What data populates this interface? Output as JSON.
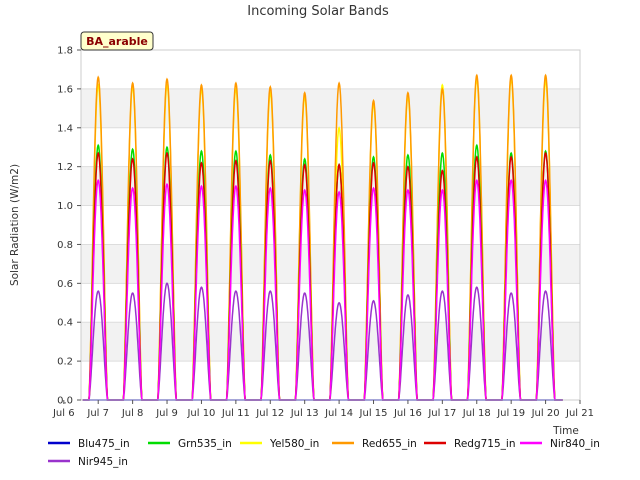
{
  "chart_data": {
    "type": "line",
    "title": "Incoming Solar Bands",
    "ylabel": "Solar Radiation (W/m2)",
    "xlabel": "Time",
    "tag": "BA_arable",
    "ylim": [
      0,
      1.8
    ],
    "xlim": [
      6.5,
      21.0
    ],
    "yticks": [
      0.0,
      0.2,
      0.4,
      0.6,
      0.8,
      1.0,
      1.2,
      1.4,
      1.6,
      1.8
    ],
    "ytick_labels": [
      "0.0",
      "0.2",
      "0.4",
      "0.6",
      "0.8",
      "1.0",
      "1.2",
      "1.4",
      "1.6",
      "1.8"
    ],
    "xticks": [
      6,
      7,
      8,
      9,
      10,
      11,
      12,
      13,
      14,
      15,
      16,
      17,
      18,
      19,
      20,
      21
    ],
    "xtick_labels": [
      "Jul 6",
      "Jul 7",
      "Jul 8",
      "Jul 9",
      "Jul 10",
      "Jul 11",
      "Jul 12",
      "Jul 13",
      "Jul 14",
      "Jul 15",
      "Jul 16",
      "Jul 17",
      "Jul 18",
      "Jul 19",
      "Jul 20",
      "Jul 21"
    ],
    "grid": true,
    "legend_position": "bottom",
    "days": [
      7,
      8,
      9,
      10,
      11,
      12,
      13,
      14,
      15,
      16,
      17,
      18,
      19,
      20
    ],
    "series": [
      {
        "name": "Blu475_in",
        "color": "#0000cc",
        "peaks": [
          0.0,
          0.0,
          0.0,
          0.0,
          0.0,
          0.0,
          0.0,
          0.0,
          0.0,
          0.0,
          0.0,
          0.0,
          0.0,
          0.0
        ]
      },
      {
        "name": "Grn535_in",
        "color": "#00dd00",
        "peaks": [
          1.31,
          1.29,
          1.3,
          1.28,
          1.28,
          1.26,
          1.24,
          1.21,
          1.25,
          1.26,
          1.27,
          1.31,
          1.27,
          1.28
        ]
      },
      {
        "name": "Yel580_in",
        "color": "#ffff00",
        "peaks": [
          1.62,
          1.61,
          1.62,
          1.6,
          1.6,
          1.58,
          1.56,
          1.4,
          1.52,
          1.56,
          1.62,
          1.65,
          1.65,
          1.64
        ]
      },
      {
        "name": "Red655_in",
        "color": "#ff9900",
        "peaks": [
          1.66,
          1.63,
          1.65,
          1.62,
          1.63,
          1.61,
          1.58,
          1.63,
          1.54,
          1.58,
          1.6,
          1.67,
          1.67,
          1.67
        ]
      },
      {
        "name": "Redg715_in",
        "color": "#dd0000",
        "peaks": [
          1.27,
          1.24,
          1.27,
          1.22,
          1.23,
          1.23,
          1.21,
          1.21,
          1.22,
          1.2,
          1.18,
          1.25,
          1.25,
          1.27
        ]
      },
      {
        "name": "Nir840_in",
        "color": "#ff00ff",
        "peaks": [
          1.13,
          1.09,
          1.11,
          1.1,
          1.1,
          1.09,
          1.08,
          1.07,
          1.09,
          1.08,
          1.08,
          1.13,
          1.13,
          1.13
        ]
      },
      {
        "name": "Nir945_in",
        "color": "#9933cc",
        "peaks": [
          0.56,
          0.55,
          0.6,
          0.58,
          0.56,
          0.56,
          0.55,
          0.5,
          0.51,
          0.54,
          0.56,
          0.58,
          0.55,
          0.56
        ]
      }
    ]
  }
}
